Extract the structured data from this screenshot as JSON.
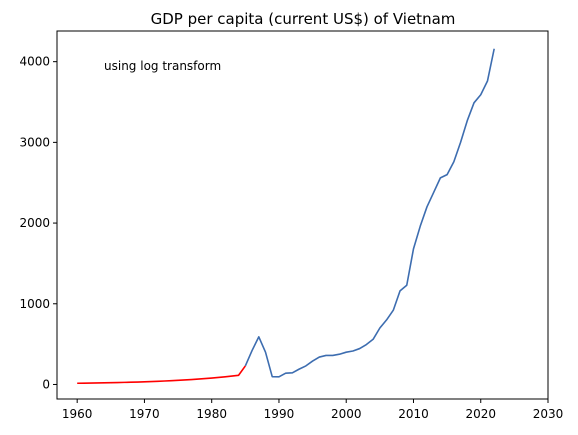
{
  "chart_data": {
    "type": "line",
    "title": "GDP per capita (current US$) of Vietnam",
    "annotation": "using log transform",
    "xlabel": "",
    "ylabel": "",
    "xlim": [
      1957,
      2030
    ],
    "ylim": [
      -180,
      4380
    ],
    "xticks": [
      1960,
      1970,
      1980,
      1990,
      2000,
      2010,
      2020,
      2030
    ],
    "yticks": [
      0,
      1000,
      2000,
      3000,
      4000
    ],
    "grid": false,
    "series": [
      {
        "color": "#ff0000",
        "x": [
          1960,
          1961,
          1962,
          1963,
          1964,
          1965,
          1966,
          1967,
          1968,
          1969,
          1970,
          1971,
          1972,
          1973,
          1974,
          1975,
          1976,
          1977,
          1978,
          1979,
          1980,
          1981,
          1982,
          1983,
          1984,
          1985
        ],
        "y": [
          15,
          16,
          17,
          19,
          20,
          22,
          24,
          26,
          28,
          30,
          33,
          36,
          39,
          43,
          47,
          51,
          56,
          61,
          67,
          73,
          80,
          87,
          95,
          104,
          114,
          230
        ]
      },
      {
        "color": "#3d6db0",
        "x": [
          1985,
          1986,
          1987,
          1988,
          1989,
          1990,
          1991,
          1992,
          1993,
          1994,
          1995,
          1996,
          1997,
          1998,
          1999,
          2000,
          2001,
          2002,
          2003,
          2004,
          2005,
          2006,
          2007,
          2008,
          2009,
          2010,
          2011,
          2012,
          2013,
          2014,
          2015,
          2016,
          2017,
          2018,
          2019,
          2020,
          2021,
          2022
        ],
        "y": [
          230,
          420,
          590,
          400,
          97,
          95,
          140,
          145,
          190,
          230,
          290,
          340,
          360,
          360,
          375,
          400,
          415,
          445,
          495,
          560,
          700,
          800,
          920,
          1160,
          1230,
          1680,
          1960,
          2200,
          2380,
          2560,
          2600,
          2760,
          3000,
          3270,
          3490,
          3590,
          3760,
          4160
        ]
      }
    ]
  }
}
